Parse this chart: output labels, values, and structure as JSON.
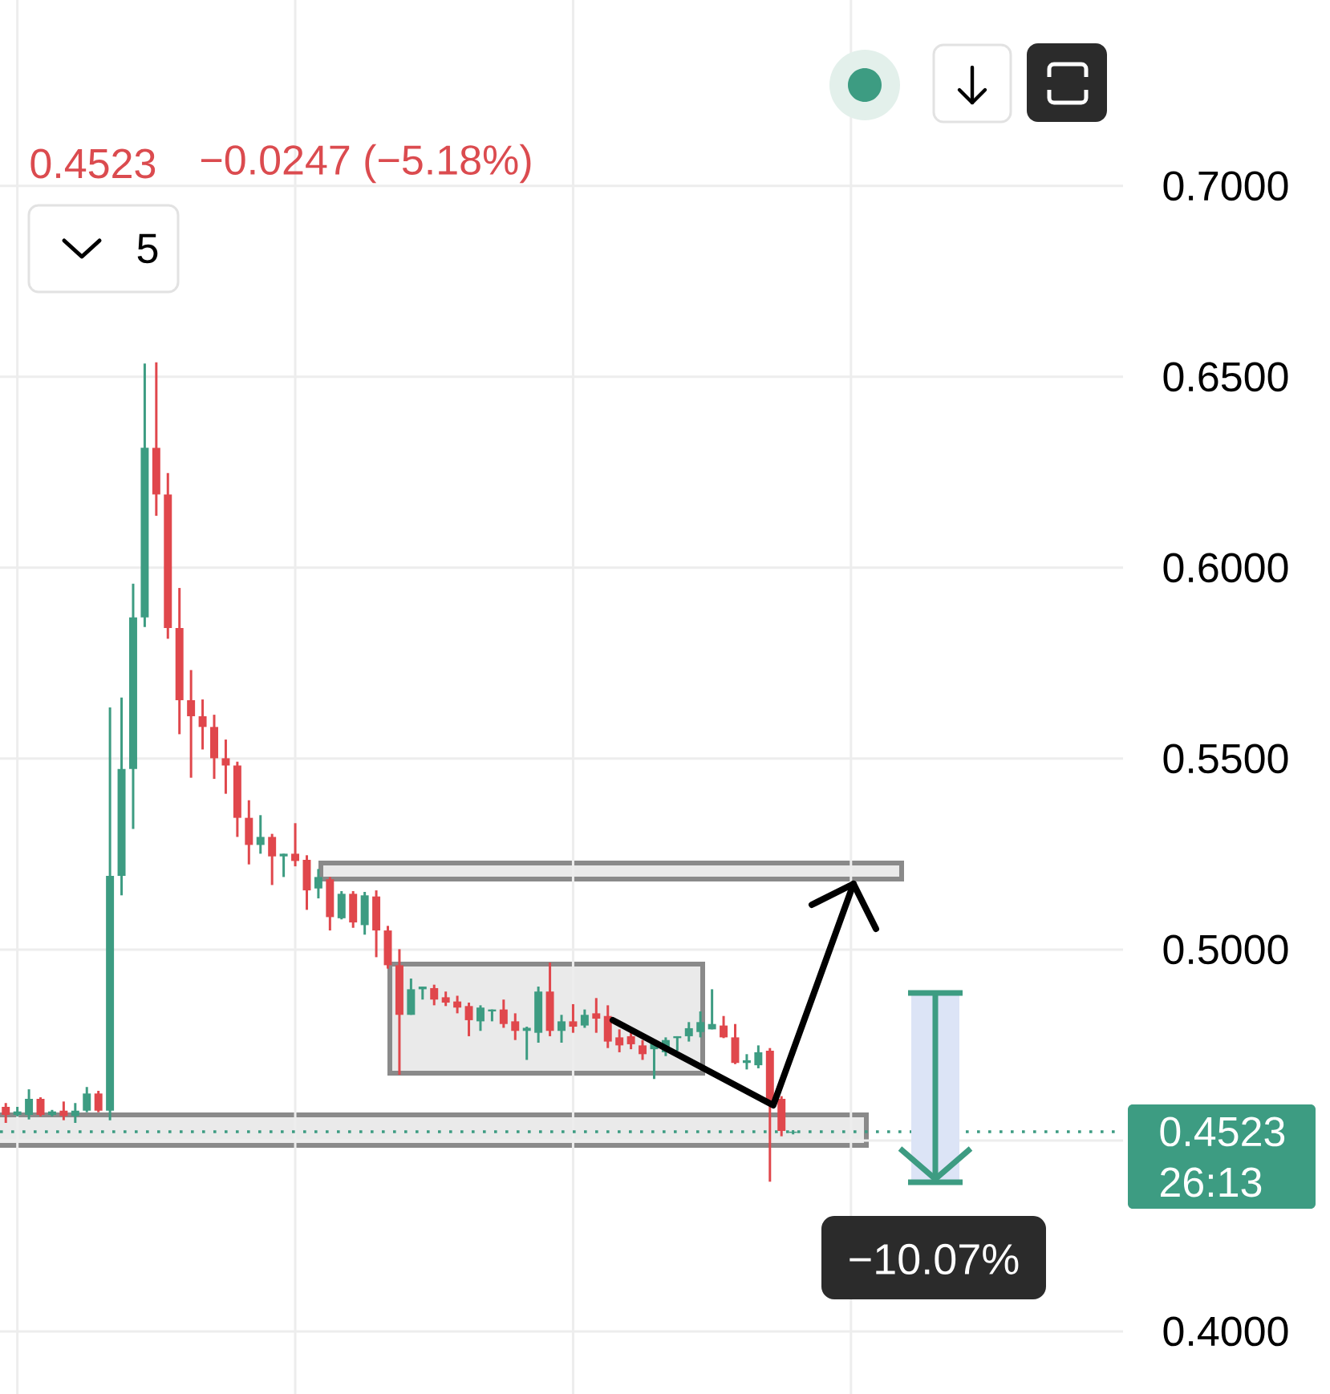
{
  "chart_data": {
    "type": "candlestick",
    "categories": [
      null,
      null,
      null,
      null,
      null,
      null,
      null,
      null,
      null,
      null,
      null,
      null,
      null,
      null,
      null,
      null,
      null,
      null,
      null,
      null,
      null,
      null,
      null,
      null,
      null,
      null,
      null,
      null,
      null,
      null,
      null,
      null,
      null,
      null,
      null,
      null,
      null,
      null,
      null,
      null,
      null,
      null,
      null,
      null,
      null,
      null,
      null,
      null,
      null,
      null,
      null,
      null,
      null,
      null,
      null,
      null,
      null,
      null,
      null,
      null,
      null,
      null,
      null,
      null,
      null,
      null,
      null,
      null,
      null,
      null,
      null,
      null,
      null,
      null,
      null,
      null,
      null,
      null,
      null,
      null,
      null,
      null,
      null,
      null,
      null,
      null,
      null,
      null,
      null,
      null,
      null,
      null,
      null,
      null,
      null,
      null,
      null
    ],
    "ohlc": [
      [
        0.4588,
        0.4598,
        0.4546,
        0.4567
      ],
      [
        0.4567,
        0.4588,
        0.4563,
        0.4576
      ],
      [
        0.4567,
        0.4634,
        0.4555,
        0.4609
      ],
      [
        0.4609,
        0.4613,
        0.4563,
        0.4567
      ],
      [
        0.4567,
        0.458,
        0.4563,
        0.4576
      ],
      [
        0.4578,
        0.4602,
        0.4553,
        0.4564
      ],
      [
        0.4564,
        0.4598,
        0.4546,
        0.4578
      ],
      [
        0.4578,
        0.464,
        0.4574,
        0.4623
      ],
      [
        0.4623,
        0.463,
        0.4574,
        0.4578
      ],
      [
        0.4578,
        0.5634,
        0.4553,
        0.5193
      ],
      [
        0.5193,
        0.566,
        0.5142,
        0.5473
      ],
      [
        0.5473,
        0.5958,
        0.5316,
        0.587
      ],
      [
        0.587,
        0.6535,
        0.5845,
        0.6314
      ],
      [
        0.6314,
        0.6538,
        0.6136,
        0.6192
      ],
      [
        0.6192,
        0.6248,
        0.5814,
        0.5842
      ],
      [
        0.5842,
        0.5947,
        0.5564,
        0.5653
      ],
      [
        0.5653,
        0.5732,
        0.545,
        0.5611
      ],
      [
        0.5611,
        0.5655,
        0.5524,
        0.5583
      ],
      [
        0.5583,
        0.5615,
        0.5447,
        0.5501
      ],
      [
        0.5501,
        0.555,
        0.5408,
        0.5482
      ],
      [
        0.5482,
        0.5492,
        0.5295,
        0.5345
      ],
      [
        0.5345,
        0.5391,
        0.5223,
        0.5274
      ],
      [
        0.5274,
        0.5352,
        0.5251,
        0.5295
      ],
      [
        0.5295,
        0.5303,
        0.5169,
        0.5244
      ],
      [
        0.5244,
        0.5251,
        0.519,
        0.5251
      ],
      [
        0.5251,
        0.5331,
        0.5218,
        0.5232
      ],
      [
        0.5235,
        0.5247,
        0.5104,
        0.5155
      ],
      [
        0.516,
        0.5211,
        0.5134,
        0.519
      ],
      [
        0.5184,
        0.519,
        0.505,
        0.5085
      ],
      [
        0.5082,
        0.5153,
        0.5079,
        0.5146
      ],
      [
        0.5146,
        0.5153,
        0.5057,
        0.5071
      ],
      [
        0.5064,
        0.5151,
        0.5039,
        0.5142
      ],
      [
        0.5139,
        0.5155,
        0.498,
        0.505
      ],
      [
        0.505,
        0.5062,
        0.495,
        0.4959
      ],
      [
        0.4959,
        0.5001,
        0.4672,
        0.4829
      ],
      [
        0.4829,
        0.4924,
        0.4829,
        0.4896
      ],
      [
        0.4896,
        0.4903,
        0.4869,
        0.4903
      ],
      [
        0.4899,
        0.4908,
        0.4854,
        0.4869
      ],
      [
        0.4875,
        0.489,
        0.4852,
        0.4861
      ],
      [
        0.4864,
        0.4879,
        0.4833,
        0.4848
      ],
      [
        0.4852,
        0.4861,
        0.4773,
        0.4815
      ],
      [
        0.4812,
        0.4854,
        0.4787,
        0.4848
      ],
      [
        0.4838,
        0.4843,
        0.4812,
        0.4843
      ],
      [
        0.4843,
        0.4869,
        0.4795,
        0.4805
      ],
      [
        0.4812,
        0.4833,
        0.4763,
        0.4787
      ],
      [
        0.4787,
        0.4798,
        0.4711,
        0.4795
      ],
      [
        0.4782,
        0.4903,
        0.4756,
        0.489
      ],
      [
        0.489,
        0.4966,
        0.4773,
        0.4787
      ],
      [
        0.4787,
        0.4829,
        0.4756,
        0.4812
      ],
      [
        0.4812,
        0.4857,
        0.4782,
        0.4798
      ],
      [
        0.4801,
        0.4843,
        0.4795,
        0.4829
      ],
      [
        0.4833,
        0.4873,
        0.4782,
        0.4819
      ],
      [
        0.4826,
        0.4854,
        0.4742,
        0.4759
      ],
      [
        0.477,
        0.4791,
        0.4731,
        0.4749
      ],
      [
        0.4773,
        0.4795,
        0.4739,
        0.4752
      ],
      [
        0.4749,
        0.4763,
        0.4711,
        0.4726
      ],
      [
        0.4739,
        0.4763,
        0.4661,
        0.4756
      ],
      [
        0.4731,
        0.477,
        0.4721,
        0.4763
      ],
      [
        0.4768,
        0.4773,
        0.4735,
        0.4773
      ],
      [
        0.4773,
        0.481,
        0.4759,
        0.4794
      ],
      [
        0.4784,
        0.4838,
        0.477,
        0.481
      ],
      [
        0.4791,
        0.4896,
        0.4791,
        0.4805
      ],
      [
        0.4801,
        0.4826,
        0.4768,
        0.477
      ],
      [
        0.477,
        0.4805,
        0.47,
        0.4703
      ],
      [
        0.4703,
        0.4726,
        0.4686,
        0.471
      ],
      [
        0.4697,
        0.4749,
        0.4689,
        0.4731
      ],
      [
        0.4735,
        0.4742,
        0.4392,
        0.4595
      ],
      [
        0.4609,
        0.4616,
        0.4511,
        0.4525
      ],
      [
        0.452,
        0.4527,
        0.4516,
        0.4523
      ],
      null,
      null,
      null,
      null,
      null,
      null,
      null,
      null,
      null,
      null,
      null,
      null,
      null,
      null,
      null,
      null,
      null,
      null,
      null,
      null,
      null,
      null,
      null,
      null,
      null,
      null,
      null,
      null
    ],
    "colors": [
      "#e0474c",
      "#3d9c82",
      "#3d9c82",
      "#e0474c",
      "#3d9c82",
      "#e0474c",
      "#3d9c82",
      "#3d9c82",
      "#e0474c",
      "#3d9c82",
      "#3d9c82",
      "#3d9c82",
      "#3d9c82",
      "#e0474c",
      "#e0474c",
      "#e0474c",
      "#e0474c",
      "#e0474c",
      "#e0474c",
      "#e0474c",
      "#e0474c",
      "#e0474c",
      "#3d9c82",
      "#e0474c",
      "#3d9c82",
      "#e0474c",
      "#e0474c",
      "#3d9c82",
      "#e0474c",
      "#3d9c82",
      "#e0474c",
      "#3d9c82",
      "#e0474c",
      "#e0474c",
      "#e0474c",
      "#3d9c82",
      "#3d9c82",
      "#e0474c",
      "#e0474c",
      "#e0474c",
      "#e0474c",
      "#3d9c82",
      "#3d9c82",
      "#e0474c",
      "#e0474c",
      "#3d9c82",
      "#3d9c82",
      "#e0474c",
      "#3d9c82",
      "#e0474c",
      "#3d9c82",
      "#e0474c",
      "#e0474c",
      "#e0474c",
      "#e0474c",
      "#e0474c",
      "#3d9c82",
      "#3d9c82",
      "#3d9c82",
      "#3d9c82",
      "#3d9c82",
      "#3d9c82",
      "#e0474c",
      "#e0474c",
      "#3d9c82",
      "#3d9c82",
      "#e0474c",
      "#e0474c",
      "#3d9c82",
      null,
      null,
      null,
      null,
      null,
      null,
      null,
      null,
      null,
      null,
      null,
      null,
      null,
      null,
      null,
      null,
      null,
      null,
      null,
      null,
      null,
      null,
      null,
      null,
      null,
      null,
      null,
      null
    ],
    "ylim": [
      0.3836,
      0.7487
    ],
    "yticks": [
      {
        "value": 0.4,
        "label": "0.4000"
      },
      {
        "value": 0.45,
        "label": null
      },
      {
        "value": 0.5,
        "label": "0.5000"
      },
      {
        "value": 0.55,
        "label": "0.5500"
      },
      {
        "value": 0.6,
        "label": "0.6000"
      },
      {
        "value": 0.65,
        "label": "0.6500"
      },
      {
        "value": 0.7,
        "label": "0.7000"
      }
    ],
    "grid": true,
    "tick_labels": "y",
    "ref_lines": [
      {
        "axis": "y",
        "value": 0.4523,
        "label": "0.4523",
        "color": "#3d9c82",
        "line_style": "dotted"
      }
    ],
    "annotations": [
      "0.4523",
      "−0.0247 (−5.18%)",
      "5",
      "26:13",
      "−10.07%"
    ]
  }
}
